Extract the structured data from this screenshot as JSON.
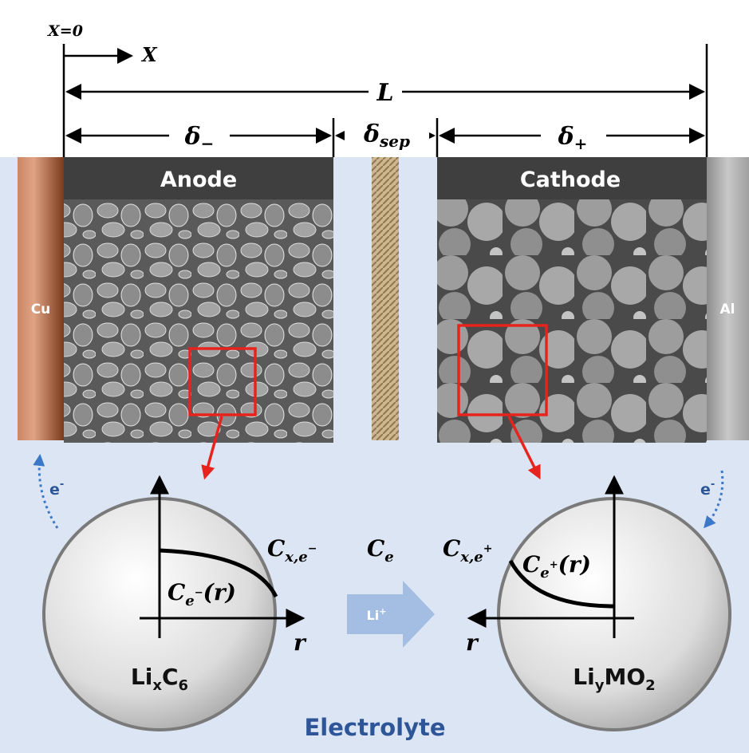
{
  "axis": {
    "origin": "X=0",
    "x": "X"
  },
  "dimensions": {
    "total": "L",
    "anode": {
      "base": "δ",
      "sub": "−"
    },
    "separator": {
      "base": "δ",
      "sub": "sep"
    },
    "cathode": {
      "base": "δ",
      "sub": "+"
    }
  },
  "electrodes": {
    "anode": "Anode",
    "cathode": "Cathode"
  },
  "collectors": {
    "anode": "Cu",
    "cathode": "Al"
  },
  "electrons": [
    {
      "base": "e",
      "sup": "-"
    },
    {
      "base": "e",
      "sup": "-"
    }
  ],
  "concentrations": {
    "anode_surface": {
      "base": "C",
      "sub": "x,e",
      "sup": "−"
    },
    "electrolyte": {
      "base": "C",
      "sub": "e"
    },
    "cathode_surface": {
      "base": "C",
      "sub": "x,e",
      "sup": "+"
    },
    "anode_profile": {
      "base": "C",
      "sub": "e",
      "sup": "−",
      "tail": "(r)"
    },
    "cathode_profile": {
      "base": "C",
      "sub": "e",
      "sup": "+",
      "tail": "(r)"
    }
  },
  "radius": [
    "r",
    "r"
  ],
  "ion": {
    "base": "Li",
    "sup": "+"
  },
  "particles": {
    "anode": {
      "a": "Li",
      "s1": "x",
      "b": "C",
      "s2": "6"
    },
    "cathode": {
      "a": "Li",
      "s1": "y",
      "b": "MO",
      "s2": "2"
    }
  },
  "electrolyte": "Electrolyte"
}
